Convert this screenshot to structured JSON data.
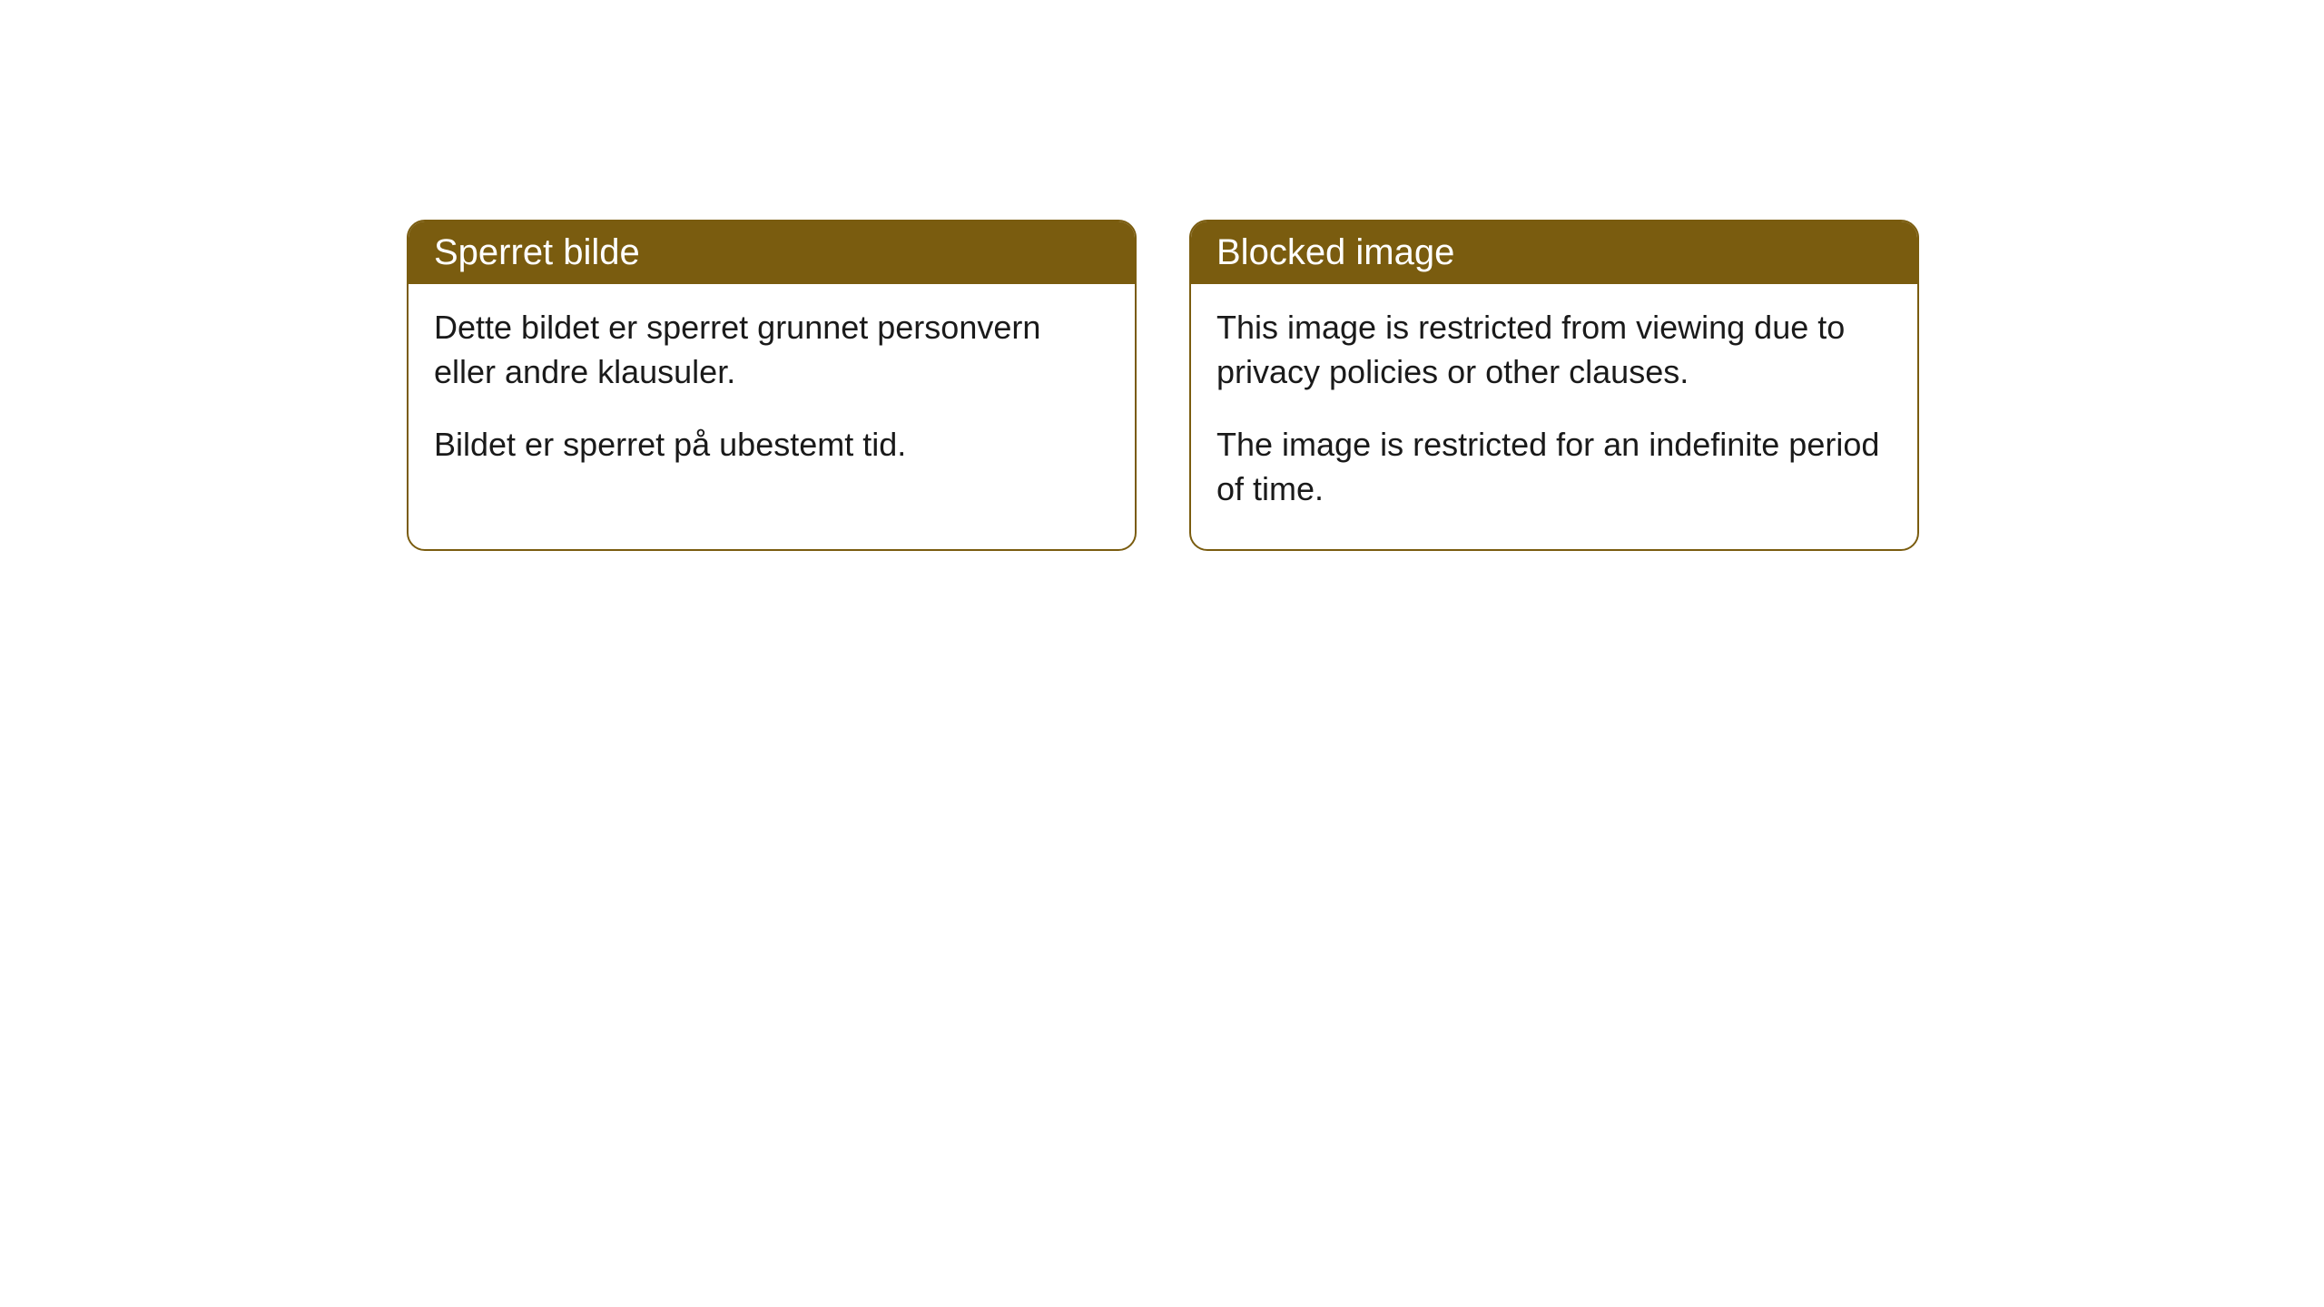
{
  "cards": [
    {
      "title": "Sperret bilde",
      "paragraph1": "Dette bildet er sperret grunnet personvern eller andre klausuler.",
      "paragraph2": "Bildet er sperret på ubestemt tid."
    },
    {
      "title": "Blocked image",
      "paragraph1": "This image is restricted from viewing due to privacy policies or other clauses.",
      "paragraph2": "The image is restricted for an indefinite period of time."
    }
  ],
  "colors": {
    "header_background": "#7a5c0f",
    "header_text": "#ffffff",
    "body_text": "#1a1a1a",
    "card_border": "#7a5c0f",
    "page_background": "#ffffff"
  }
}
